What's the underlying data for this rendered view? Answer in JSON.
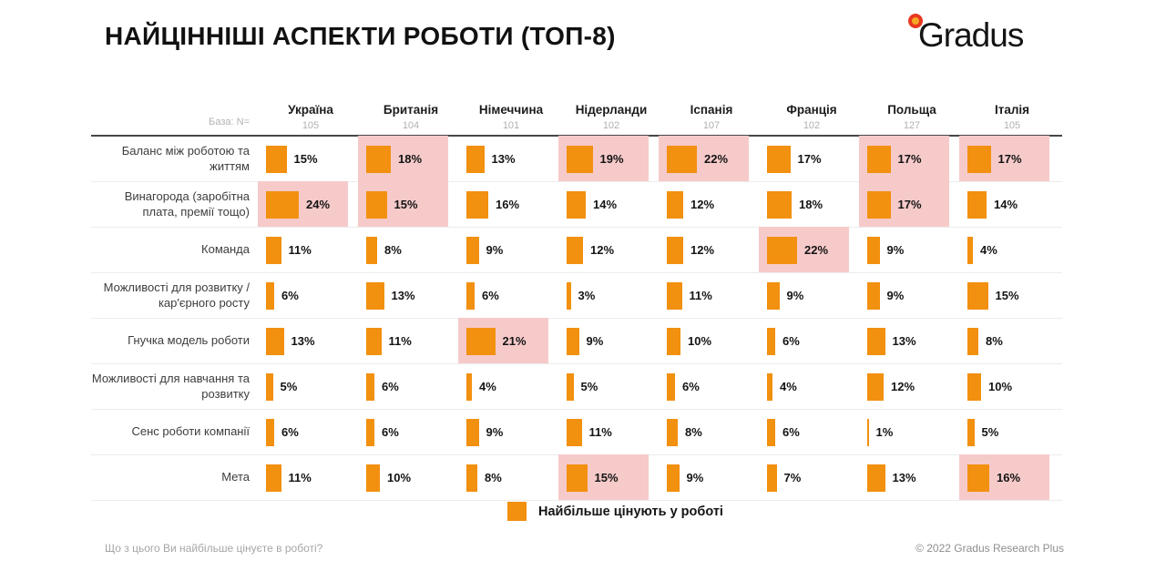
{
  "title": "НАЙЦІННІШІ АСПЕКТИ РОБОТИ (ТОП-8)",
  "logo": {
    "text": "Gradus"
  },
  "base_label": "База: N=",
  "legend": {
    "label": "Найбільше цінують у роботі"
  },
  "footer": {
    "question": "Що з цього Ви найбільше цінуєте в роботі?",
    "copyright": "© 2022 Gradus Research Plus"
  },
  "colors": {
    "bar": "#f2900f",
    "highlight": "#f7caca",
    "header_line": "#474747",
    "row_line": "#ececec"
  },
  "chart_data": {
    "type": "bar",
    "layout": "matrix: rows are work aspects, columns are countries; horizontal orange bars sized by percent; pink highlight marks top values",
    "unit": "%",
    "value_range": [
      0,
      24
    ],
    "countries": [
      {
        "name": "Україна",
        "n": 105
      },
      {
        "name": "Британія",
        "n": 104
      },
      {
        "name": "Німеччина",
        "n": 101
      },
      {
        "name": "Нідерланди",
        "n": 102
      },
      {
        "name": "Іспанія",
        "n": 107
      },
      {
        "name": "Франція",
        "n": 102
      },
      {
        "name": "Польща",
        "n": 127
      },
      {
        "name": "Італія",
        "n": 105
      }
    ],
    "rows": [
      {
        "label": "Баланс між роботою та життям",
        "values": [
          15,
          18,
          13,
          19,
          22,
          17,
          17,
          17
        ],
        "highlighted": [
          false,
          true,
          false,
          true,
          true,
          false,
          true,
          true
        ]
      },
      {
        "label": "Винагорода (заробітна плата, премії тощо)",
        "values": [
          24,
          15,
          16,
          14,
          12,
          18,
          17,
          14
        ],
        "highlighted": [
          true,
          true,
          false,
          false,
          false,
          false,
          true,
          false
        ]
      },
      {
        "label": "Команда",
        "values": [
          11,
          8,
          9,
          12,
          12,
          22,
          9,
          4
        ],
        "highlighted": [
          false,
          false,
          false,
          false,
          false,
          true,
          false,
          false
        ]
      },
      {
        "label": "Можливості для розвитку / кар'єрного росту",
        "values": [
          6,
          13,
          6,
          3,
          11,
          9,
          9,
          15
        ],
        "highlighted": [
          false,
          false,
          false,
          false,
          false,
          false,
          false,
          false
        ]
      },
      {
        "label": "Гнучка модель роботи",
        "values": [
          13,
          11,
          21,
          9,
          10,
          6,
          13,
          8
        ],
        "highlighted": [
          false,
          false,
          true,
          false,
          false,
          false,
          false,
          false
        ]
      },
      {
        "label": "Можливості для навчання та розвитку",
        "values": [
          5,
          6,
          4,
          5,
          6,
          4,
          12,
          10
        ],
        "highlighted": [
          false,
          false,
          false,
          false,
          false,
          false,
          false,
          false
        ]
      },
      {
        "label": "Сенс роботи компанії",
        "values": [
          6,
          6,
          9,
          11,
          8,
          6,
          1,
          5
        ],
        "highlighted": [
          false,
          false,
          false,
          false,
          false,
          false,
          false,
          false
        ]
      },
      {
        "label": "Мета",
        "values": [
          11,
          10,
          8,
          15,
          9,
          7,
          13,
          16
        ],
        "highlighted": [
          false,
          false,
          false,
          true,
          false,
          false,
          false,
          true
        ]
      }
    ]
  }
}
